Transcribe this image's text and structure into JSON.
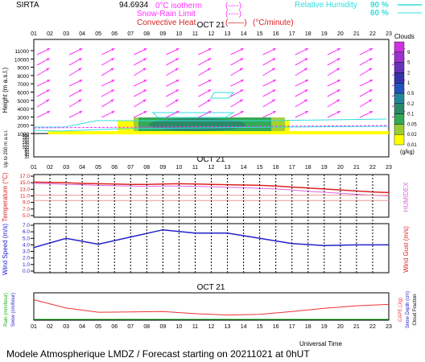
{
  "header": {
    "site": "SIRTA",
    "coord": "94.6934",
    "legend_isotherm": "0°C isotherm",
    "legend_isotherm_sym": "(----)",
    "legend_snowrain": "Snow-Rain Limit",
    "legend_snowrain_sym": "(----)",
    "legend_conv": "Convective Heat",
    "legend_conv_sym": "(——)",
    "legend_conv_unit": "(°C/minute)",
    "rh_label": "Relative Humidity",
    "rh_90": "90 %",
    "rh_60": "60 %"
  },
  "hour_ticks": [
    "01",
    "02",
    "03",
    "04",
    "05",
    "06",
    "07",
    "08",
    "09",
    "10",
    "11",
    "12",
    "13",
    "14",
    "15",
    "16",
    "17",
    "18",
    "19",
    "20",
    "21",
    "22",
    "23"
  ],
  "date_label": "OCT 21",
  "footer": {
    "universal_time": "Universal Time",
    "model_text": "Modele Atmospherique LMDZ / Forecast starting on 20211021 at 0hUT"
  },
  "colors": {
    "wind_arrows": "#ff33ff",
    "rh_contour": "#33dddd",
    "temperature": "#dd2222",
    "humidex": "#dd66dd",
    "wind_speed": "#2222cc",
    "rain": "#11aa11",
    "cape": "#ee3333",
    "cloud_scale": [
      "#ffff00",
      "#99cc33",
      "#33aa55",
      "#2a8a66",
      "#228899",
      "#2255bb",
      "#3333aa",
      "#6633bb",
      "#9933cc",
      "#cc33dd"
    ]
  },
  "chart_data": [
    {
      "type": "heatmap",
      "panel": "clouds-wind-profile",
      "ylabel": "Height (m a.s.l.)",
      "ylabel2": "Up to 200 m a.s.l.",
      "yticks": [
        "11000",
        "10000",
        "9000",
        "8000",
        "7000",
        "6000",
        "5000",
        "4000",
        "3000",
        "2000",
        "1000",
        "200",
        "180",
        "160",
        "140",
        "120",
        "100",
        "80",
        "60",
        "40",
        "20"
      ],
      "colorbar_title": "Clouds",
      "colorbar_unit": "(g/kg)",
      "colorbar_levels": [
        "0.01",
        "0.02",
        "0.05",
        "0.1",
        "0.2",
        "0.5",
        "1",
        "2",
        "5",
        "9"
      ],
      "cloud_layer_hours": [
        7,
        16
      ],
      "cloud_layer_height_m": [
        1000,
        2200
      ],
      "wind_arrow_levels_m": [
        10800,
        9600,
        8300,
        7000,
        5800,
        4600,
        3200
      ]
    },
    {
      "type": "line",
      "panel": "temperature",
      "ylabel": "Temperature (°C)",
      "ylabel_right": "HUMIDEX",
      "yticks": [
        "5.0",
        "7.0",
        "9.0",
        "11.0",
        "13.0",
        "15.0",
        "17.0"
      ],
      "ylim": [
        5,
        17
      ],
      "x": [
        1,
        2,
        3,
        4,
        5,
        6,
        7,
        8,
        9,
        10,
        11,
        12,
        13,
        14,
        15,
        16,
        17,
        18,
        19,
        20,
        21,
        22,
        23
      ],
      "series": [
        {
          "values": [
            15.2,
            15.1,
            15.0,
            14.8,
            14.7,
            14.6,
            14.5,
            14.5,
            14.6,
            14.7,
            14.6,
            14.5,
            14.4,
            14.3,
            14.2,
            14.0,
            13.7,
            13.4,
            13.1,
            12.8,
            12.5,
            12.2,
            12.0
          ]
        },
        {
          "values": [
            14.8,
            14.7,
            14.5,
            14.4,
            14.2,
            14.1,
            14.0,
            13.9,
            14.0,
            14.0,
            13.9,
            13.8,
            13.6,
            13.5,
            13.3,
            13.1,
            12.8,
            12.4,
            12.1,
            11.8,
            11.5,
            11.2,
            11.0
          ]
        },
        {
          "values": [
            11.2,
            11.2,
            11.2,
            11.2,
            11.2,
            11.2,
            11.2,
            11.2,
            11.2,
            11.2,
            11.2,
            11.2,
            11.2,
            11.2,
            11.2,
            11.2,
            11.2,
            11.2,
            11.2,
            11.2,
            11.2,
            11.2,
            11.2
          ]
        },
        {
          "values": [
            9.6,
            9.6,
            9.6,
            9.6,
            9.6,
            9.6,
            9.6,
            9.6,
            9.6,
            9.6,
            9.6,
            9.6,
            9.6,
            9.6,
            9.6,
            9.6,
            9.6,
            9.6,
            9.6,
            9.6,
            9.6,
            9.6,
            9.6
          ]
        }
      ]
    },
    {
      "type": "line",
      "panel": "wind",
      "ylabel": "Wind Speed (m/s)",
      "ylabel_right": "Wind Gust (m/s)",
      "yticks": [
        "0.0",
        "1.0",
        "2.0",
        "3.0",
        "4.0",
        "5.0",
        "6.0",
        "7.0"
      ],
      "ylim": [
        0,
        7
      ],
      "x": [
        1,
        3,
        5,
        7,
        9,
        11,
        13,
        15,
        17,
        19,
        21,
        23
      ],
      "series": [
        {
          "values": [
            3.6,
            5.0,
            4.1,
            5.2,
            6.3,
            5.8,
            5.8,
            5.0,
            4.2,
            3.9,
            4.0,
            4.0
          ]
        }
      ]
    },
    {
      "type": "line",
      "panel": "precip-cape",
      "ylabel_left1": "Rain (mm/hour)",
      "ylabel_left2": "Snow (cm/hour)",
      "ylabel_right1": "CAPE (J/g)",
      "ylabel_right2": "Snow Depth (cm)",
      "ylabel_right3": "Cloud Fraction",
      "x": [
        1,
        3,
        5,
        7,
        9,
        11,
        13,
        15,
        17,
        19,
        21,
        23
      ],
      "series": [
        {
          "values": [
            0.55,
            0.32,
            0.2,
            0.21,
            0.22,
            0.16,
            0.12,
            0.14,
            0.22,
            0.31,
            0.38,
            0.42
          ]
        }
      ]
    }
  ]
}
